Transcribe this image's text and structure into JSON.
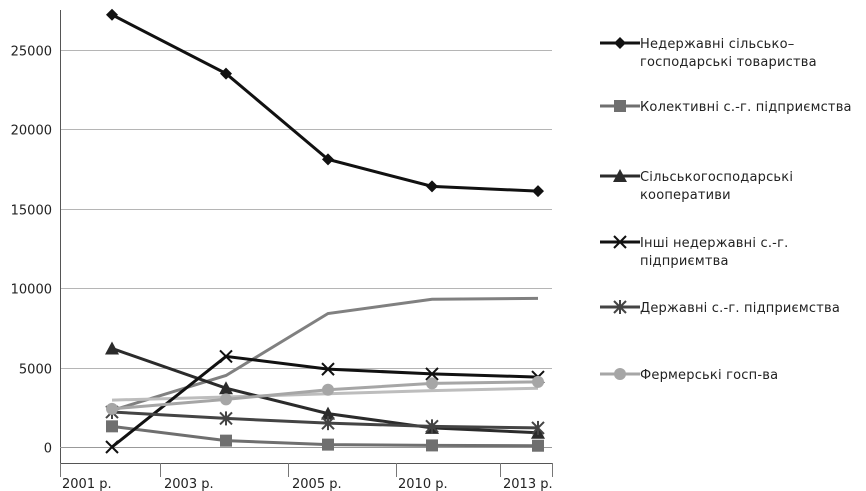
{
  "chart_data": {
    "type": "line",
    "categories": [
      "2001 р.",
      "2003 р.",
      "2005 р.",
      "2010 р.",
      "2013 р."
    ],
    "ylim": [
      0,
      27500
    ],
    "yticks": [
      0,
      5000,
      10000,
      15000,
      20000,
      25000
    ],
    "grid": true,
    "legend_position": "right",
    "series": [
      {
        "name_lines": [
          "Недержавні сільсько–",
          "господарські товариства"
        ],
        "color": "#111111",
        "marker": "diamond",
        "values": [
          27200,
          23500,
          18100,
          16400,
          16100
        ]
      },
      {
        "name_lines": [
          "Колективні с.-г. підприємства"
        ],
        "color": "#6f6f6f",
        "marker": "square",
        "values": [
          1300,
          400,
          150,
          100,
          80
        ]
      },
      {
        "name_lines": [
          "Сільськогосподарські",
          "кооперативи"
        ],
        "color": "#2b2b2b",
        "marker": "triangle",
        "values": [
          6200,
          3700,
          2100,
          1200,
          900
        ]
      },
      {
        "name_lines": [
          "Інші недержавні с.-г.",
          "підприємтва"
        ],
        "color": "#111111",
        "marker": "x",
        "values": [
          0,
          5700,
          4900,
          4600,
          4400
        ]
      },
      {
        "name_lines": [
          "Державні с.-г. підприємства"
        ],
        "color": "#444444",
        "marker": "asterisk",
        "values": [
          2200,
          1800,
          1500,
          1300,
          1200
        ]
      },
      {
        "name_lines": [
          "Фермерські госп-ва"
        ],
        "color": "#a6a6a6",
        "marker": "circle",
        "values": [
          2400,
          3000,
          3600,
          4000,
          4100
        ]
      }
    ],
    "extra_lines": [
      {
        "color": "#808080",
        "values": [
          2300,
          4500,
          8400,
          9300,
          9350
        ]
      },
      {
        "color": "#bdbdbd",
        "values": [
          2950,
          3150,
          3350,
          3550,
          3700
        ]
      }
    ]
  }
}
